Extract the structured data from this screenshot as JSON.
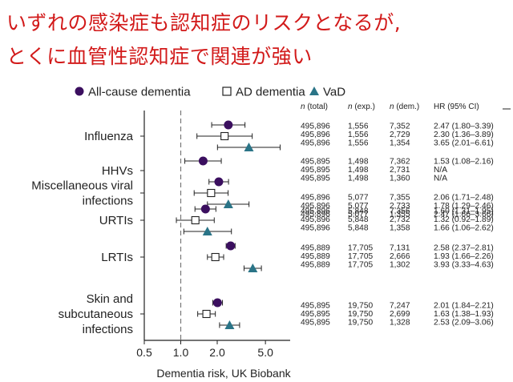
{
  "headline": {
    "line1": "いずれの感染症も認知症のリスクとなるが,",
    "line2": "とくに血管性認知症で関連が強い"
  },
  "chart_data": {
    "type": "forest",
    "xscale": "log",
    "xlim": [
      0.5,
      8
    ],
    "xticks": [
      0.5,
      1.0,
      2.0,
      5.0
    ],
    "xtick_labels": [
      "0.5",
      "1.0",
      "2.0",
      "5.0"
    ],
    "reference_line": 1.0,
    "xlabel": "Dementia risk, UK Biobank",
    "legend": [
      "All-cause dementia",
      "AD dementia",
      "VaD"
    ],
    "column_headers": [
      "n (total)",
      "n (exp.)",
      "n (dem.)",
      "HR (95% CI)"
    ],
    "colors": {
      "all_cause": "#3b0f5f",
      "ad": "#ffffff",
      "vad": "#2a7487",
      "text": "#222222",
      "refline": "#777777"
    },
    "groups": [
      {
        "label_lines": [
          "Influenza"
        ],
        "rows": [
          {
            "series": "All-cause dementia",
            "n_total": "495,896",
            "n_exp": "1,556",
            "n_dem": "7,352",
            "hr": 2.47,
            "lo": 1.8,
            "hi": 3.39,
            "hr_text": "2.47 (1.80–3.39)"
          },
          {
            "series": "AD dementia",
            "n_total": "495,896",
            "n_exp": "1,556",
            "n_dem": "2,729",
            "hr": 2.3,
            "lo": 1.36,
            "hi": 3.89,
            "hr_text": "2.30 (1.36–3.89)"
          },
          {
            "series": "VaD",
            "n_total": "495,896",
            "n_exp": "1,556",
            "n_dem": "1,354",
            "hr": 3.65,
            "lo": 2.01,
            "hi": 6.61,
            "hr_text": "3.65 (2.01–6.61)"
          }
        ]
      },
      {
        "label_lines": [
          "HHVs"
        ],
        "rows": [
          {
            "series": "All-cause dementia",
            "n_total": "495,895",
            "n_exp": "1,498",
            "n_dem": "7,362",
            "hr": 1.53,
            "lo": 1.08,
            "hi": 2.16,
            "hr_text": "1.53 (1.08–2.16)"
          },
          {
            "series": "AD dementia",
            "n_total": "495,895",
            "n_exp": "1,498",
            "n_dem": "2,731",
            "hr": null,
            "lo": null,
            "hi": null,
            "hr_text": "N/A"
          },
          {
            "series": "VaD",
            "n_total": "495,895",
            "n_exp": "1,498",
            "n_dem": "1,360",
            "hr": null,
            "lo": null,
            "hi": null,
            "hr_text": "N/A"
          }
        ]
      },
      {
        "label_lines": [
          "Miscellaneous viral",
          "infections"
        ],
        "rows": [
          {
            "series": "All-cause dementia",
            "n_total": "495,896",
            "n_exp": "5,077",
            "n_dem": "7,355",
            "hr": 2.06,
            "lo": 1.71,
            "hi": 2.48,
            "hr_text": "2.06 (1.71–2.48)"
          },
          {
            "series": "AD dementia",
            "n_total": "495,896",
            "n_exp": "5,077",
            "n_dem": "2,733",
            "hr": 1.78,
            "lo": 1.29,
            "hi": 2.46,
            "hr_text": "1.78 (1.29–2.46)"
          },
          {
            "series": "VaD",
            "n_total": "495,896",
            "n_exp": "5,077",
            "n_dem": "1,355",
            "hr": 2.47,
            "lo": 1.66,
            "hi": 3.66,
            "hr_text": "2.47 (1.66–3.66)"
          }
        ]
      },
      {
        "label_lines": [
          "URTIs"
        ],
        "rows": [
          {
            "series": "All-cause dementia",
            "n_total": "495,896",
            "n_exp": "5,848",
            "n_dem": "7,356",
            "hr": 1.6,
            "lo": 1.31,
            "hi": 1.95,
            "hr_text": "1.60 (1.31–1.95)"
          },
          {
            "series": "AD dementia",
            "n_total": "495,896",
            "n_exp": "5,848",
            "n_dem": "2,732",
            "hr": 1.32,
            "lo": 0.92,
            "hi": 1.89,
            "hr_text": "1.32 (0.92–1.89)"
          },
          {
            "series": "VaD",
            "n_total": "495,896",
            "n_exp": "5,848",
            "n_dem": "1,358",
            "hr": 1.66,
            "lo": 1.06,
            "hi": 2.62,
            "hr_text": "1.66 (1.06–2.62)"
          }
        ]
      },
      {
        "label_lines": [
          "LRTIs"
        ],
        "rows": [
          {
            "series": "All-cause dementia",
            "n_total": "495,889",
            "n_exp": "17,705",
            "n_dem": "7,131",
            "hr": 2.58,
            "lo": 2.37,
            "hi": 2.81,
            "hr_text": "2.58 (2.37–2.81)"
          },
          {
            "series": "AD dementia",
            "n_total": "495,889",
            "n_exp": "17,705",
            "n_dem": "2,666",
            "hr": 1.93,
            "lo": 1.66,
            "hi": 2.26,
            "hr_text": "1.93 (1.66–2.26)"
          },
          {
            "series": "VaD",
            "n_total": "495,889",
            "n_exp": "17,705",
            "n_dem": "1,302",
            "hr": 3.93,
            "lo": 3.33,
            "hi": 4.63,
            "hr_text": "3.93 (3.33–4.63)"
          }
        ]
      },
      {
        "label_lines": [
          "Skin and",
          "subcutaneous",
          "infections"
        ],
        "rows": [
          {
            "series": "All-cause dementia",
            "n_total": "495,895",
            "n_exp": "19,750",
            "n_dem": "7,247",
            "hr": 2.01,
            "lo": 1.84,
            "hi": 2.21,
            "hr_text": "2.01 (1.84–2.21)"
          },
          {
            "series": "AD dementia",
            "n_total": "495,895",
            "n_exp": "19,750",
            "n_dem": "2,699",
            "hr": 1.63,
            "lo": 1.38,
            "hi": 1.93,
            "hr_text": "1.63 (1.38–1.93)"
          },
          {
            "series": "VaD",
            "n_total": "495,895",
            "n_exp": "19,750",
            "n_dem": "1,328",
            "hr": 2.53,
            "lo": 2.09,
            "hi": 3.06,
            "hr_text": "2.53 (2.09–3.06)"
          }
        ]
      }
    ]
  }
}
